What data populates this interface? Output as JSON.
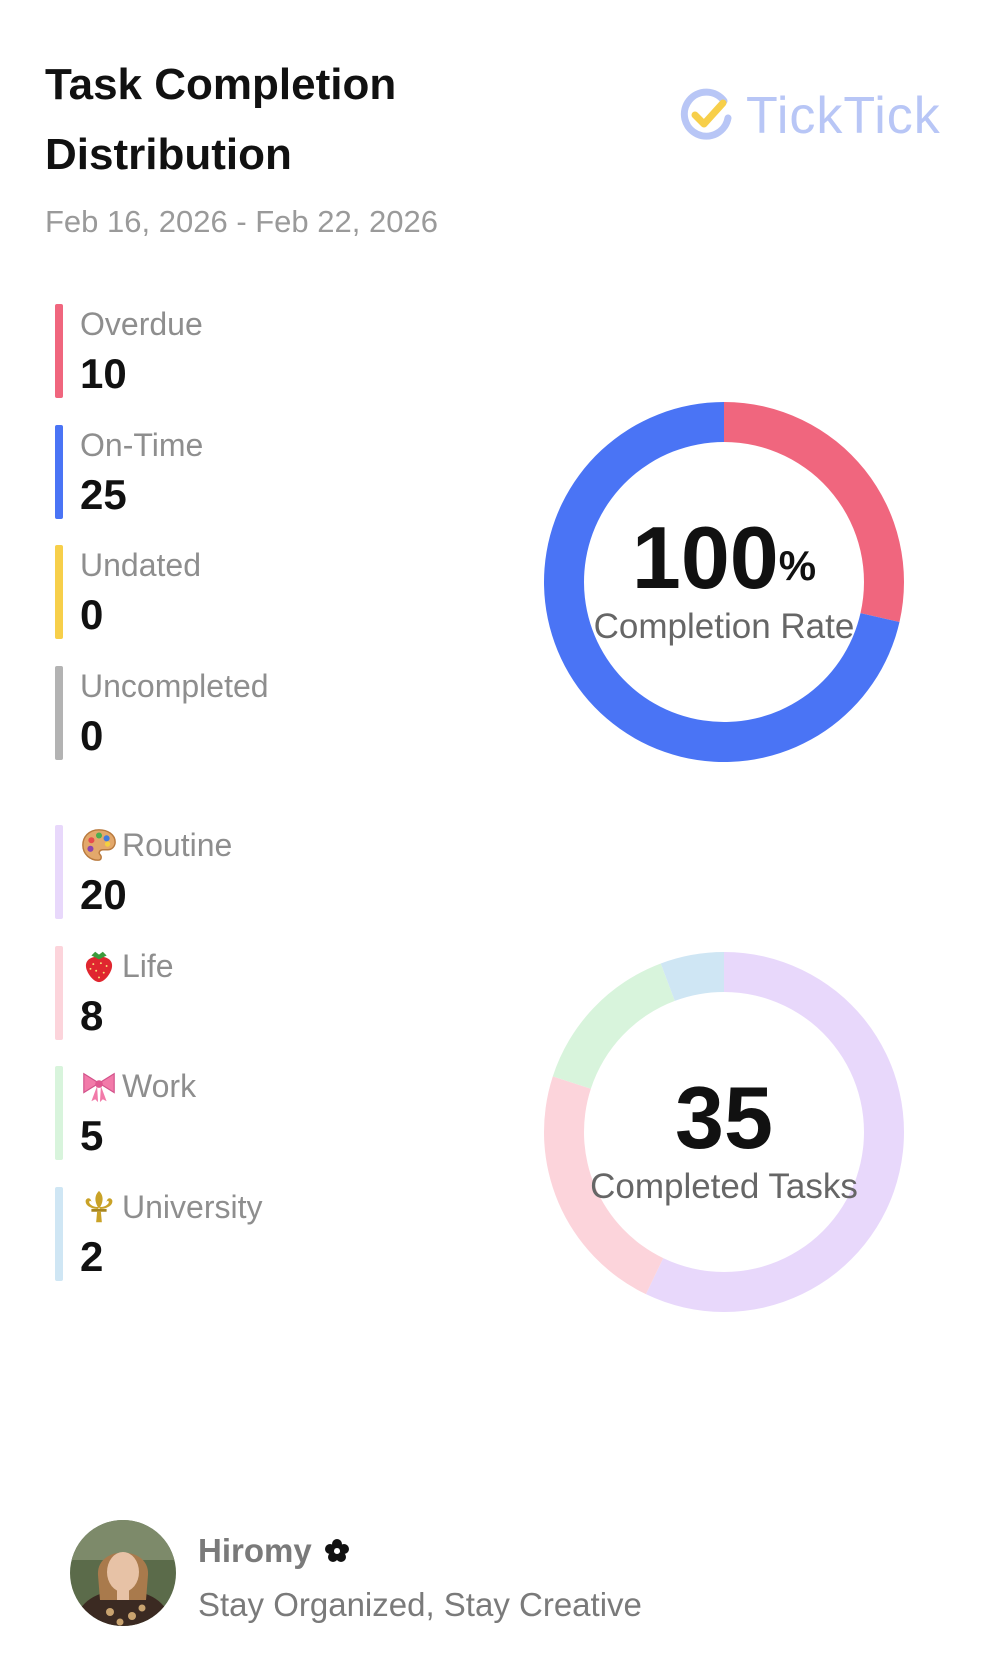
{
  "header": {
    "title": "Task Completion Distribution",
    "date_range": "Feb 16, 2026 - Feb 22, 2026",
    "brand": "TickTick"
  },
  "status_legend": [
    {
      "label": "Overdue",
      "value": "10",
      "color": "#f0667e"
    },
    {
      "label": "On-Time",
      "value": "25",
      "color": "#4a74f5"
    },
    {
      "label": "Undated",
      "value": "0",
      "color": "#f7cf4a"
    },
    {
      "label": "Uncompleted",
      "value": "0",
      "color": "#b3b3b3"
    }
  ],
  "list_legend": [
    {
      "label": "Routine",
      "value": "20",
      "color": "#e8d8fb",
      "icon": "palette-icon"
    },
    {
      "label": "Life",
      "value": "8",
      "color": "#fcd4db",
      "icon": "strawberry-icon"
    },
    {
      "label": "Work",
      "value": "5",
      "color": "#d8f4dc",
      "icon": "ribbon-icon"
    },
    {
      "label": "University",
      "value": "2",
      "color": "#cfe6f4",
      "icon": "fleur-de-lis-icon"
    }
  ],
  "completion_rate": {
    "value": "100",
    "unit": "%",
    "caption": "Completion Rate"
  },
  "completed_tasks": {
    "value": "35",
    "caption": "Completed Tasks"
  },
  "profile": {
    "name": "Hiromy",
    "name_icon": "flower-icon",
    "tagline": "Stay Organized, Stay Creative"
  },
  "chart_data": [
    {
      "type": "pie",
      "categories": [
        "Overdue",
        "On-Time",
        "Undated",
        "Uncompleted"
      ],
      "values": [
        10,
        25,
        0,
        0
      ],
      "colors": [
        "#f0667e",
        "#4a74f5",
        "#f7cf4a",
        "#b3b3b3"
      ],
      "title": ""
    },
    {
      "type": "pie",
      "categories": [
        "Routine",
        "Life",
        "Work",
        "University"
      ],
      "values": [
        20,
        8,
        5,
        2
      ],
      "colors": [
        "#e8d8fb",
        "#fcd4db",
        "#d8f4dc",
        "#cfe6f4"
      ],
      "title": ""
    }
  ]
}
